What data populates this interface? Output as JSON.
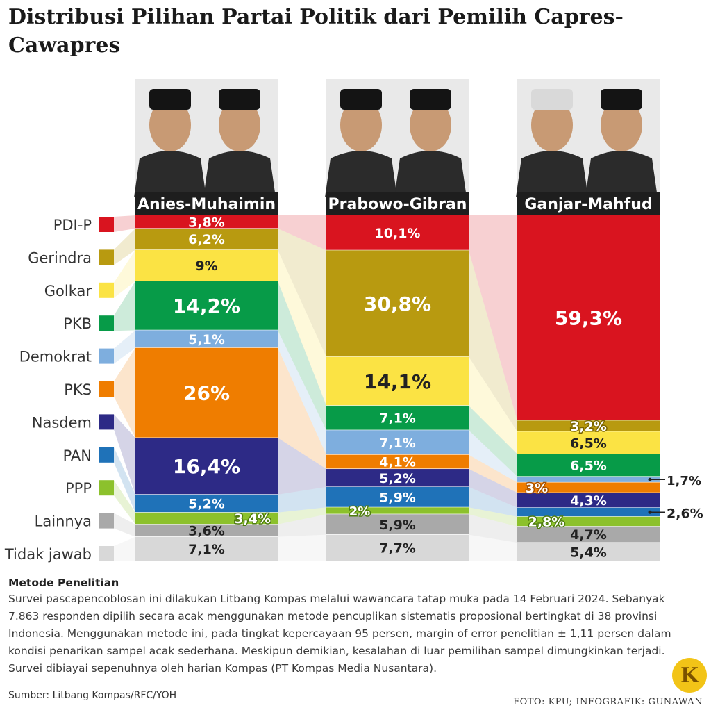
{
  "title": "Distribusi Pilihan Partai Politik dari Pemilih Capres-Cawapres",
  "chart_data": {
    "type": "stacked-bar",
    "categories": [
      "PDI-P",
      "Gerindra",
      "Golkar",
      "PKB",
      "Demokrat",
      "PKS",
      "Nasdem",
      "PAN",
      "PPP",
      "Lainnya",
      "Tidak jawab"
    ],
    "colors": [
      "#d9141f",
      "#b89a10",
      "#fbe344",
      "#079b48",
      "#7eaede",
      "#ef7d00",
      "#2d2a86",
      "#1f72b8",
      "#8cc12c",
      "#a9a9a9",
      "#d8d8d8"
    ],
    "series": [
      {
        "name": "Anies-Muhaimin",
        "values": [
          3.8,
          6.2,
          9,
          14.2,
          5.1,
          26,
          16.4,
          5.2,
          3.4,
          3.6,
          7.1
        ],
        "labels": [
          "3,8%",
          "6,2%",
          "9%",
          "14,2%",
          "5,1%",
          "26%",
          "16,4%",
          "5,2%",
          "3,4%",
          "3,6%",
          "7,1%"
        ]
      },
      {
        "name": "Prabowo-Gibran",
        "values": [
          10.1,
          30.8,
          14.1,
          7.1,
          7.1,
          4.1,
          5.2,
          5.9,
          2,
          5.9,
          7.7
        ],
        "labels": [
          "10,1%",
          "30,8%",
          "14,1%",
          "7,1%",
          "7,1%",
          "4,1%",
          "5,2%",
          "5,9%",
          "2%",
          "5,9%",
          "7,7%"
        ]
      },
      {
        "name": "Ganjar-Mahfud",
        "values": [
          59.3,
          3.2,
          6.5,
          6.5,
          1.7,
          3,
          4.3,
          2.6,
          2.8,
          4.7,
          5.4
        ],
        "labels": [
          "59,3%",
          "3,2%",
          "6,5%",
          "6,5%",
          "1,7%",
          "3%",
          "4,3%",
          "2,6%",
          "2,8%",
          "4,7%",
          "5,4%"
        ]
      }
    ]
  },
  "method": {
    "title": "Metode Penelitian",
    "body": "Survei pascapencoblosan ini dilakukan Litbang Kompas melalui wawancara tatap muka pada 14 Februari 2024. Sebanyak 7.863 responden dipilih secara acak menggunakan metode pencuplikan sistematis proposional bertingkat di 38 provinsi Indonesia. Menggunakan metode ini, pada tingkat kepercayaan 95 persen, margin of error penelitian ± 1,11 persen dalam kondisi penarikan sampel acak sederhana. Meskipun demikian, kesalahan di luar pemilihan sampel dimungkinkan terjadi. Survei dibiayai sepenuhnya oleh harian Kompas (PT Kompas Media Nusantara)."
  },
  "source": "Sumber: Litbang Kompas/RFC/YOH",
  "credit": "FOTO: KPU; INFOGRAFIK: GUNAWAN",
  "logo_letter": "K"
}
